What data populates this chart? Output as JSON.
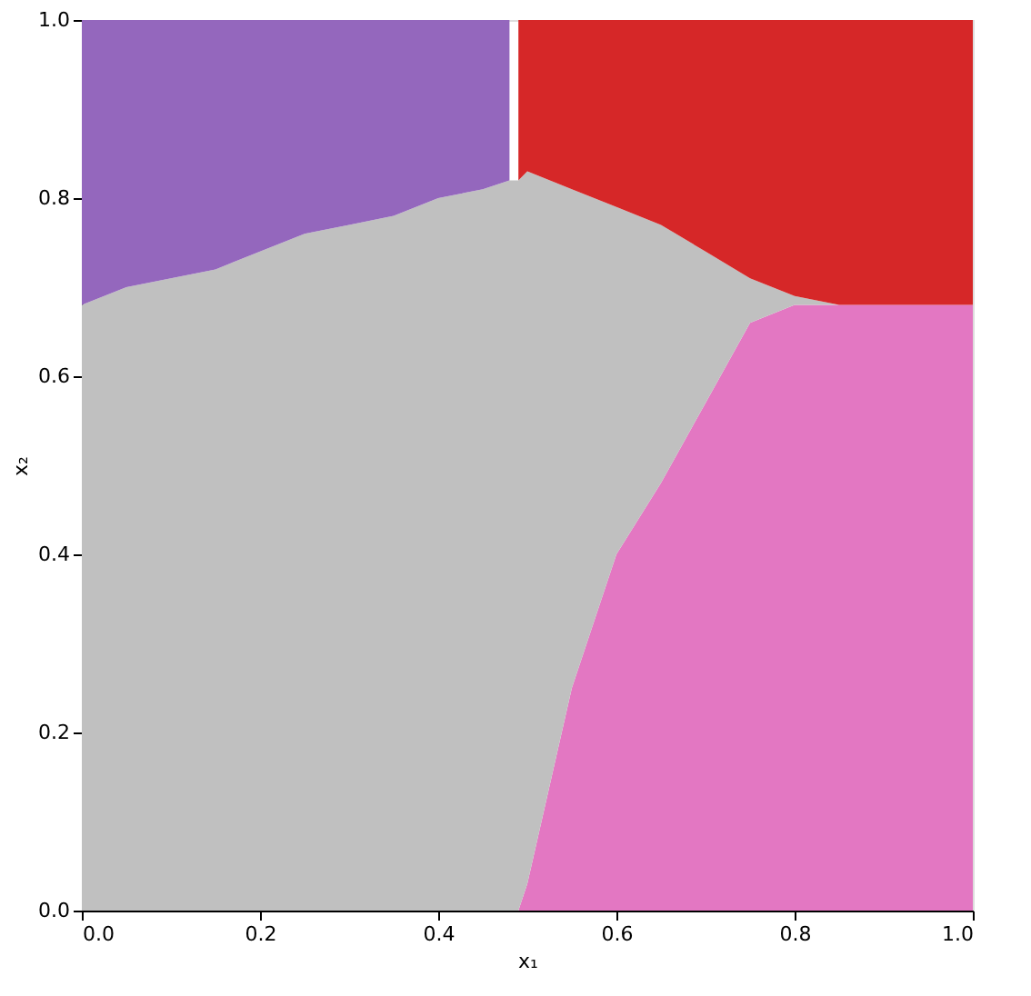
{
  "chart_data": {
    "type": "area",
    "stacked": true,
    "xlabel": "x₁",
    "ylabel": "x₂",
    "grid": false,
    "legend": false,
    "xlim": [
      0,
      1
    ],
    "ylim": [
      0,
      1
    ],
    "xticks": [
      {
        "value": 0,
        "label": "0.0"
      },
      {
        "value": 0.2,
        "label": "0.2"
      },
      {
        "value": 0.4,
        "label": "0.4"
      },
      {
        "value": 0.6,
        "label": "0.6"
      },
      {
        "value": 0.8,
        "label": "0.8"
      },
      {
        "value": 1,
        "label": "1.0"
      }
    ],
    "yticks": [
      {
        "value": 0,
        "label": "0.0"
      },
      {
        "value": 0.2,
        "label": "0.2"
      },
      {
        "value": 0.4,
        "label": "0.4"
      },
      {
        "value": 0.6,
        "label": "0.6"
      },
      {
        "value": 0.8,
        "label": "0.8"
      },
      {
        "value": 1,
        "label": "1.0"
      }
    ],
    "x": [
      0,
      0.05,
      0.1,
      0.15,
      0.2,
      0.25,
      0.3,
      0.35,
      0.4,
      0.45,
      0.48,
      0.49,
      0.5,
      0.55,
      0.6,
      0.65,
      0.7,
      0.75,
      0.8,
      0.85,
      0.9,
      0.95,
      1
    ],
    "series": [
      {
        "color": "#e377c2",
        "values": [
          null,
          null,
          null,
          null,
          null,
          null,
          null,
          null,
          null,
          null,
          null,
          0,
          0.03,
          0.25,
          0.4,
          0.48,
          0.57,
          0.66,
          0.68,
          0.68,
          0.68,
          0.68,
          0.68
        ]
      },
      {
        "color": "#c0c0c0",
        "values": [
          0.68,
          0.7,
          0.71,
          0.72,
          0.74,
          0.76,
          0.77,
          0.78,
          0.8,
          0.81,
          0.82,
          0.82,
          0.8,
          0.56,
          0.39,
          0.29,
          0.17,
          0.05,
          0.01,
          0,
          null,
          null,
          null
        ]
      },
      {
        "color": "#9467bd",
        "values": [
          0.32,
          0.3,
          0.29,
          0.28,
          0.26,
          0.24,
          0.23,
          0.22,
          0.2,
          0.19,
          0.18,
          null,
          null,
          null,
          null,
          null,
          null,
          null,
          null,
          null,
          null,
          null,
          null
        ]
      },
      {
        "color": "#d62728",
        "values": [
          null,
          null,
          null,
          null,
          null,
          null,
          null,
          null,
          null,
          null,
          null,
          0.18,
          0.17,
          0.19,
          0.21,
          0.23,
          0.26,
          0.29,
          0.31,
          0.32,
          0.32,
          0.32,
          0.32
        ]
      }
    ]
  }
}
